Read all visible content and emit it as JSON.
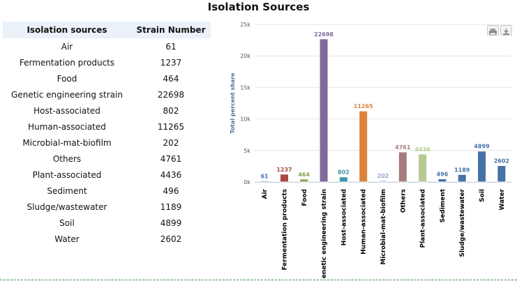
{
  "page": {
    "title": "Isolation Sources"
  },
  "table": {
    "headers": [
      "Isolation sources",
      "Strain Number"
    ],
    "rows": [
      [
        "Air",
        "61"
      ],
      [
        "Fermentation products",
        "1237"
      ],
      [
        "Food",
        "464"
      ],
      [
        "Genetic engineering strain",
        "22698"
      ],
      [
        "Host-associated",
        "802"
      ],
      [
        "Human-associated",
        "11265"
      ],
      [
        "Microbial-mat-biofilm",
        "202"
      ],
      [
        "Others",
        "4761"
      ],
      [
        "Plant-associated",
        "4436"
      ],
      [
        "Sediment",
        "496"
      ],
      [
        "Sludge/wastewater",
        "1189"
      ],
      [
        "Soil",
        "4899"
      ],
      [
        "Water",
        "2602"
      ]
    ]
  },
  "chart_data": {
    "type": "bar",
    "title": "",
    "xlabel": "",
    "ylabel": "Total percent share",
    "ylim": [
      0,
      25000
    ],
    "yticks": [
      0,
      5000,
      10000,
      15000,
      20000,
      25000
    ],
    "ytick_labels": [
      "0k",
      "5k",
      "10k",
      "15k",
      "20k",
      "25k"
    ],
    "grid": true,
    "legend": "none",
    "categories": [
      "Air",
      "Fermentation products",
      "Food",
      "Genetic engineering strain",
      "Host-associated",
      "Human-associated",
      "Microbial-mat-biofilm",
      "Others",
      "Plant-associated",
      "Sediment",
      "Sludge/wastewater",
      "Soil",
      "Water"
    ],
    "values": [
      61,
      1237,
      464,
      22698,
      802,
      11265,
      202,
      4761,
      4436,
      496,
      1189,
      4899,
      2602
    ],
    "colors": [
      "#4572a7",
      "#aa4643",
      "#89a54e",
      "#80699b",
      "#3d96ae",
      "#db843d",
      "#92a8cd",
      "#a47d7c",
      "#b5ca92",
      "#4572a7",
      "#4572a7",
      "#4572a7",
      "#4572a7"
    ],
    "label_colors": [
      "#4572a7",
      "#aa4643",
      "#89a54e",
      "#80699b",
      "#3d96ae",
      "#db843d",
      "#92a8cd",
      "#a47d7c",
      "#b5ca92",
      "#4572a7",
      "#4572a7",
      "#4572a7",
      "#4572a7"
    ]
  },
  "toolbar": {
    "print_icon": "printer-icon",
    "download_icon": "download-icon"
  }
}
